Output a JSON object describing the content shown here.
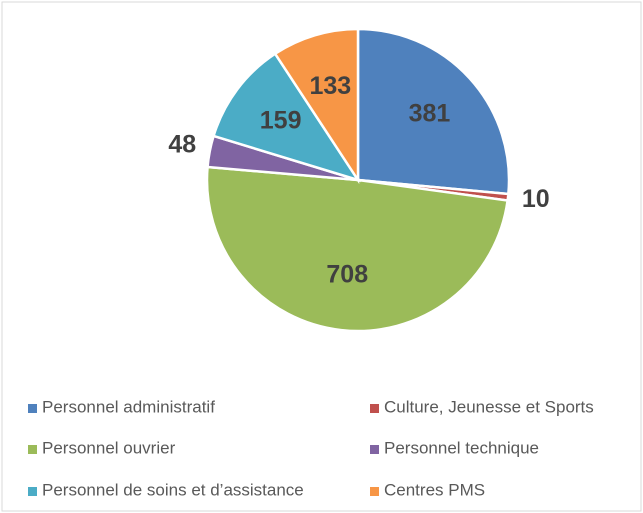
{
  "chart_data": {
    "type": "pie",
    "categories": [
      "Personnel administratif",
      "Culture, Jeunesse et Sports",
      "Personnel ouvrier",
      "Personnel technique",
      "Personnel de soins et d’assistance",
      "Centres PMS"
    ],
    "values": [
      381,
      10,
      708,
      48,
      159,
      133
    ],
    "colors": [
      "#4f81bd",
      "#c0504d",
      "#9bbb59",
      "#8064a2",
      "#4bacc6",
      "#f79646"
    ],
    "legend": "bottom"
  }
}
